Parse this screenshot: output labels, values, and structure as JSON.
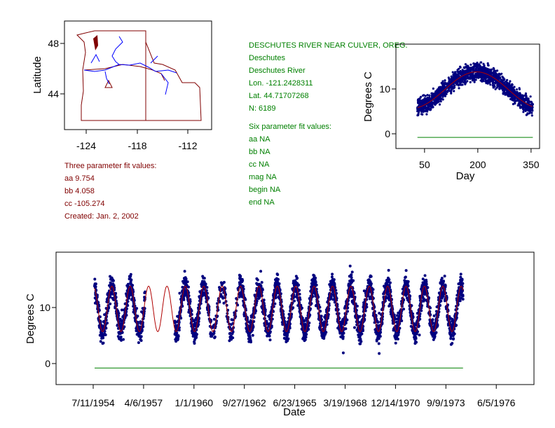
{
  "station": {
    "title": "DESCHUTES RIVER NEAR CULVER, OREG.",
    "basin": "Deschutes",
    "river": "Deschutes River",
    "lon": "Lon. -121.2428311",
    "lat": "Lat. 44.71707268",
    "n": "N: 6189"
  },
  "six_param": {
    "heading": "Six parameter fit values:",
    "aa": "aa NA",
    "bb": "bb NA",
    "cc": "cc NA",
    "mag": "mag NA",
    "begin": "begin NA",
    "end": "end NA"
  },
  "three_param": {
    "heading": "Three parameter fit values:",
    "aa": "aa 9.754",
    "bb": "bb 4.058",
    "cc": "cc -105.274",
    "created": "Created:   Jan. 2, 2002"
  },
  "colors": {
    "text_green": "#008000",
    "text_red": "#800000",
    "points": "#00007f",
    "fit": "#b00000",
    "river": "#0000ff",
    "border": "#800000"
  },
  "chart_data": [
    {
      "type": "map",
      "ylabel": "Latitude",
      "xticks": [
        "-124",
        "-118",
        "-112"
      ],
      "yticks": [
        "48",
        "44"
      ]
    },
    {
      "type": "scatter",
      "xlabel": "Day",
      "ylabel": "Degrees C",
      "xticks": [
        50,
        200,
        350
      ],
      "yticks": [
        10,
        0
      ],
      "xlim": [
        0,
        370
      ],
      "ylim": [
        -3,
        17
      ],
      "fit": {
        "aa": 9.754,
        "bb": 4.058,
        "cc": -105.274,
        "formula": "aa + bb*sin(2*pi*(day+cc)/365)"
      },
      "reference_line": {
        "y": -0.8,
        "x": [
          30,
          355
        ]
      },
      "points_range_day": [
        30,
        355
      ],
      "n": 6189
    },
    {
      "type": "scatter",
      "xlabel": "Date",
      "ylabel": "Degrees C",
      "xtick_labels": [
        "7/11/1954",
        "4/6/1957",
        "1/1/1960",
        "9/27/1962",
        "6/23/1965",
        "3/19/1968",
        "12/14/1970",
        "9/9/1973",
        "6/5/1976"
      ],
      "xtick_days": [
        0,
        1000,
        2000,
        3000,
        4000,
        5000,
        6000,
        7000,
        8000
      ],
      "yticks": [
        10,
        0
      ],
      "ylim": [
        -4,
        19
      ],
      "data_gap_days": [
        1030,
        1620
      ],
      "data_days": [
        28,
        7340
      ],
      "reference_line": {
        "y": -0.8,
        "x_days": [
          28,
          7340
        ]
      }
    }
  ]
}
